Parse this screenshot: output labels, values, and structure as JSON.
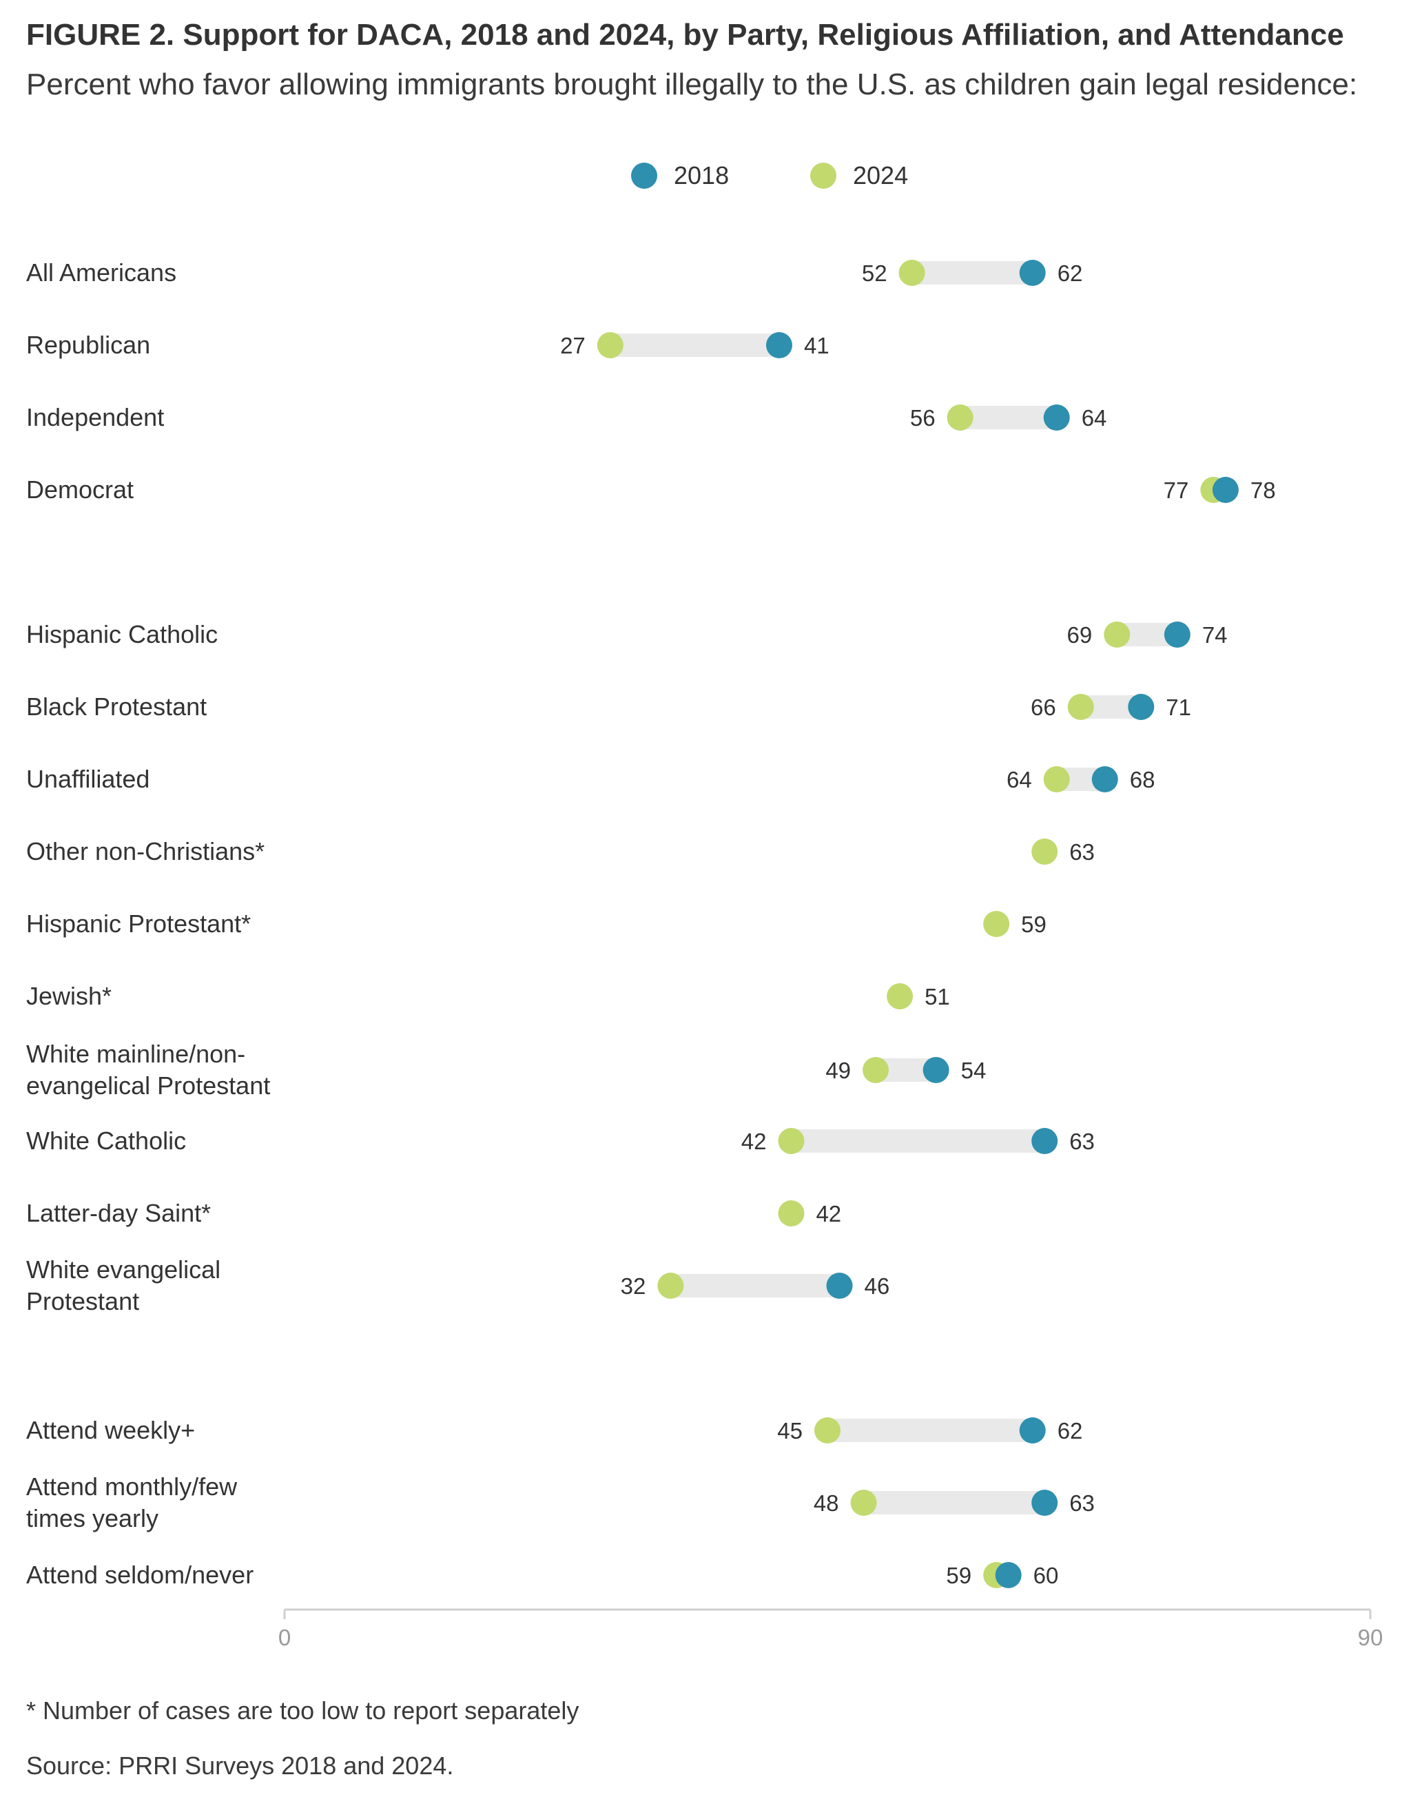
{
  "title": "FIGURE 2.  Support for DACA, 2018 and 2024, by Party, Religious Affiliation, and Attendance",
  "subtitle": "Percent who favor allowing immigrants brought illegally to the U.S. as children gain legal residence:",
  "legend": [
    {
      "label": "2018",
      "color": "#2e8fae"
    },
    {
      "label": "2024",
      "color": "#c2d96e"
    }
  ],
  "footnote": "* Number of cases are too low to report separately",
  "source": "Source: PRRI Surveys 2018 and 2024.",
  "chart_data": {
    "type": "dumbbell",
    "title": "FIGURE 2.  Support for DACA, 2018 and 2024, by Party, Religious Affiliation, and Attendance",
    "subtitle": "Percent who favor allowing immigrants brought illegally to the U.S. as children gain legal residence:",
    "xlim": [
      0,
      90
    ],
    "x_ticks": [
      0,
      90
    ],
    "grid": false,
    "legend_position": "top-center",
    "colors": {
      "2018": "#2e8fae",
      "2024": "#c2d96e",
      "bar": "#e8e9e8"
    },
    "series": [
      {
        "name": "2018"
      },
      {
        "name": "2024"
      }
    ],
    "rows": [
      {
        "label": "All Americans",
        "v2018": 62,
        "v2024": 52
      },
      {
        "label": "Republican",
        "v2018": 41,
        "v2024": 27
      },
      {
        "label": "Independent",
        "v2018": 64,
        "v2024": 56
      },
      {
        "label": "Democrat",
        "v2018": 78,
        "v2024": 77
      },
      {
        "label": "Hispanic Catholic",
        "v2018": 74,
        "v2024": 69
      },
      {
        "label": "Black Protestant",
        "v2018": 71,
        "v2024": 66
      },
      {
        "label": "Unaffiliated",
        "v2018": 68,
        "v2024": 64
      },
      {
        "label": "Other non-Christians*",
        "v2018": null,
        "v2024": 63
      },
      {
        "label": "Hispanic Protestant*",
        "v2018": null,
        "v2024": 59
      },
      {
        "label": "Jewish*",
        "v2018": null,
        "v2024": 51
      },
      {
        "label": "White mainline/non-\nevangelical Protestant",
        "v2018": 54,
        "v2024": 49
      },
      {
        "label": "White Catholic",
        "v2018": 63,
        "v2024": 42
      },
      {
        "label": "Latter-day Saint*",
        "v2018": null,
        "v2024": 42
      },
      {
        "label": "White evangelical\nProtestant",
        "v2018": 46,
        "v2024": 32
      },
      {
        "label": "Attend weekly+",
        "v2018": 62,
        "v2024": 45
      },
      {
        "label": "Attend monthly/few\ntimes yearly",
        "v2018": 63,
        "v2024": 48
      },
      {
        "label": "Attend seldom/never",
        "v2018": 60,
        "v2024": 59
      }
    ]
  }
}
